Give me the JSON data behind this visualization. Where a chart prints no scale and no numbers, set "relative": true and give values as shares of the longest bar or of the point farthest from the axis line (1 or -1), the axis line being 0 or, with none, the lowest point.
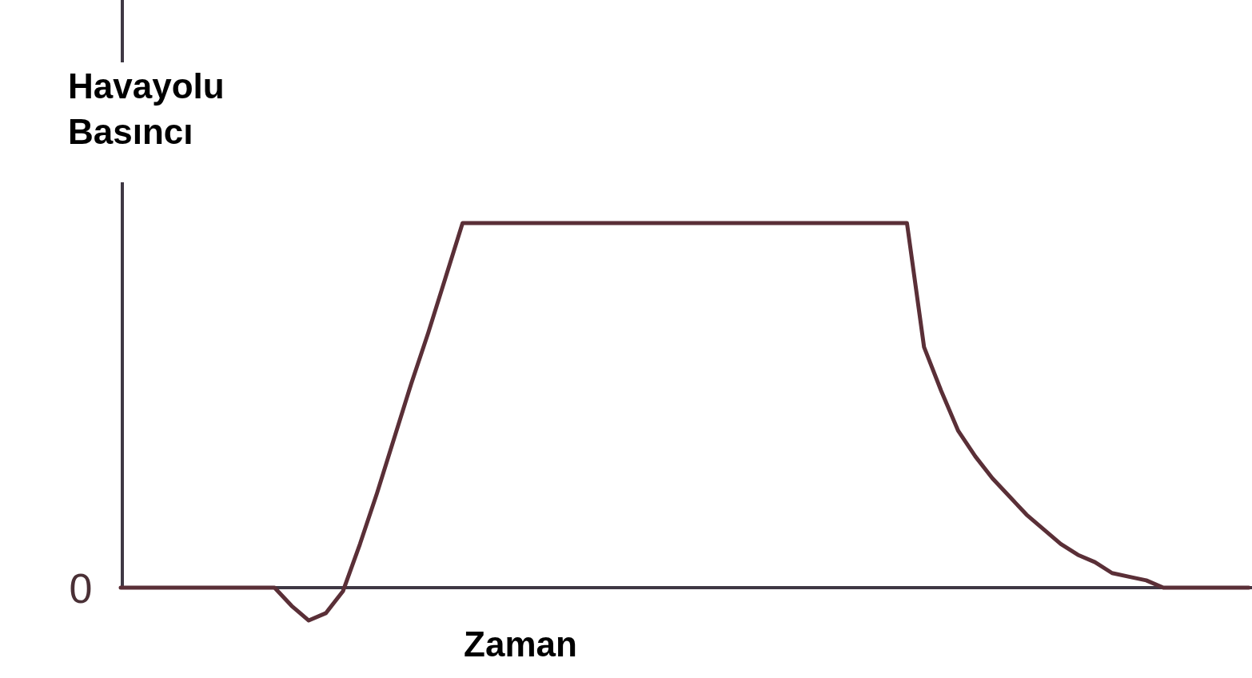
{
  "chart_data": {
    "type": "line",
    "xlabel": "Zaman",
    "ylabel": "Havayolu Basıncı",
    "relative": true,
    "categories": [
      null,
      null,
      null,
      null,
      null,
      null,
      null,
      null,
      null,
      null,
      null,
      null,
      null,
      null,
      null,
      null,
      null,
      null,
      null,
      null,
      null,
      null,
      null,
      null,
      null,
      null,
      null,
      null,
      null,
      null,
      null,
      null,
      null,
      null,
      null,
      null,
      null,
      null,
      null,
      null,
      null,
      null,
      null,
      null,
      null,
      null,
      null,
      null,
      null,
      null,
      null,
      null,
      null,
      null,
      null,
      null,
      null,
      null,
      null,
      null,
      null,
      null,
      null,
      null,
      null,
      null,
      null
    ],
    "values": [
      0,
      0,
      0,
      0,
      0,
      0,
      0,
      0,
      0,
      0,
      -0.05,
      -0.09,
      -0.07,
      -0.01,
      0.12,
      0.26,
      0.41,
      0.56,
      0.7,
      0.85,
      1,
      1,
      1,
      1,
      1,
      1,
      1,
      1,
      1,
      1,
      1,
      1,
      1,
      1,
      1,
      1,
      1,
      1,
      1,
      1,
      1,
      1,
      1,
      1,
      1,
      1,
      1,
      0.66,
      0.54,
      0.43,
      0.36,
      0.3,
      0.25,
      0.2,
      0.16,
      0.12,
      0.09,
      0.07,
      0.04,
      0.03,
      0.02,
      0,
      0,
      0,
      0,
      0,
      0
    ],
    "color": "#5a2f37",
    "annotations": [
      "0"
    ]
  }
}
